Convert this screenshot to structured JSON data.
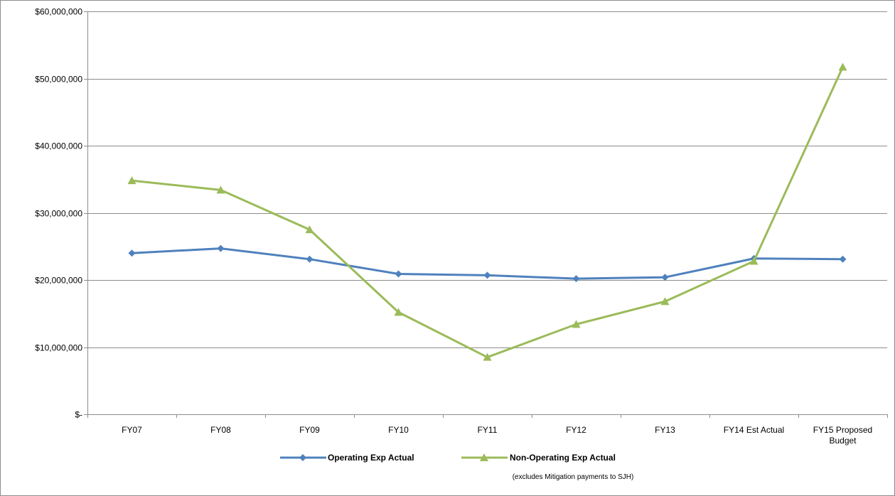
{
  "chart_data": {
    "type": "line",
    "title": "",
    "xlabel": "",
    "ylabel": "",
    "categories": [
      "FY07",
      "FY08",
      "FY09",
      "FY10",
      "FY11",
      "FY12",
      "FY13",
      "FY14 Est Actual",
      "FY15 Proposed Budget"
    ],
    "category_lines": [
      [
        "FY07"
      ],
      [
        "FY08"
      ],
      [
        "FY09"
      ],
      [
        "FY10"
      ],
      [
        "FY11"
      ],
      [
        "FY12"
      ],
      [
        "FY13"
      ],
      [
        "FY14 Est Actual"
      ],
      [
        "FY15 Proposed",
        "Budget"
      ]
    ],
    "ylim": [
      0,
      60000000
    ],
    "y_ticks": [
      0,
      10000000,
      20000000,
      30000000,
      40000000,
      50000000,
      60000000
    ],
    "y_tick_labels": [
      "$-",
      "$10,000,000",
      "$20,000,000",
      "$30,000,000",
      "$40,000,000",
      "$50,000,000",
      "$60,000,000"
    ],
    "grid": true,
    "legend_position": "bottom",
    "series": [
      {
        "name": "Operating Exp Actual",
        "color": "#4F81BD",
        "marker": "diamond",
        "values": [
          24000000,
          24700000,
          23100000,
          20900000,
          20700000,
          20200000,
          20400000,
          23200000,
          23100000
        ]
      },
      {
        "name": "Non-Operating Exp Actual",
        "color": "#9BBB59",
        "marker": "triangle",
        "values": [
          34800000,
          33400000,
          27500000,
          15200000,
          8500000,
          13400000,
          16800000,
          22800000,
          51700000
        ]
      }
    ],
    "note": "(excludes Mitigation payments to SJH)"
  }
}
